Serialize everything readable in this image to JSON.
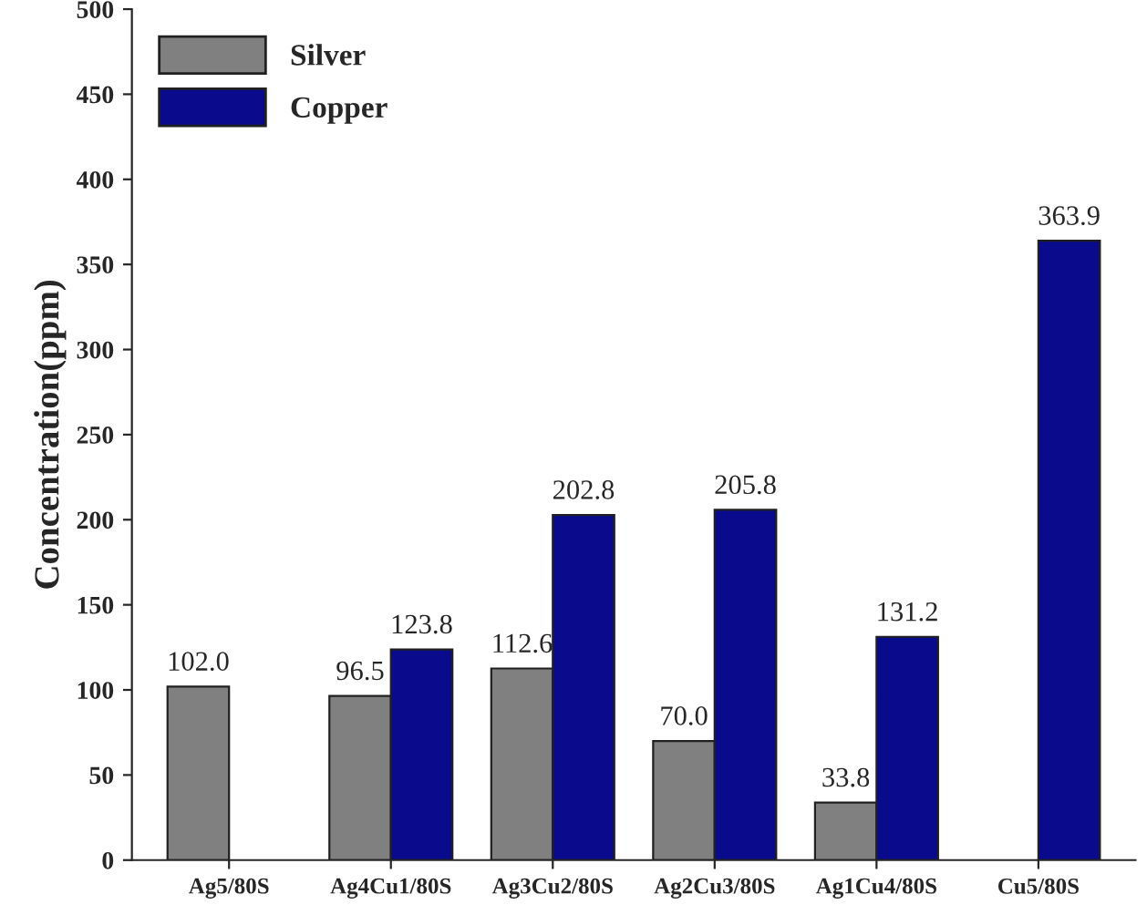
{
  "chart_data": {
    "type": "bar",
    "ylabel": "Concentration(ppm)",
    "categories": [
      "Ag5/80S",
      "Ag4Cu1/80S",
      "Ag3Cu2/80S",
      "Ag2Cu3/80S",
      "Ag1Cu4/80S",
      "Cu5/80S"
    ],
    "series": [
      {
        "name": "Silver",
        "color": "#808080",
        "values": [
          102.0,
          96.5,
          112.6,
          70.0,
          33.8,
          null
        ],
        "value_labels": [
          "102.0",
          "96.5",
          "112.6",
          "70.0",
          "33.8",
          null
        ]
      },
      {
        "name": "Copper",
        "color": "#0a0a8c",
        "values": [
          null,
          123.8,
          202.8,
          205.8,
          131.2,
          363.9
        ],
        "value_labels": [
          null,
          "123.8",
          "202.8",
          "205.8",
          "131.2",
          "363.9"
        ]
      }
    ],
    "ylim": [
      0,
      500
    ],
    "yticks": [
      0,
      50,
      100,
      150,
      200,
      250,
      300,
      350,
      400,
      450,
      500
    ],
    "grid": false,
    "legend": "top left"
  }
}
